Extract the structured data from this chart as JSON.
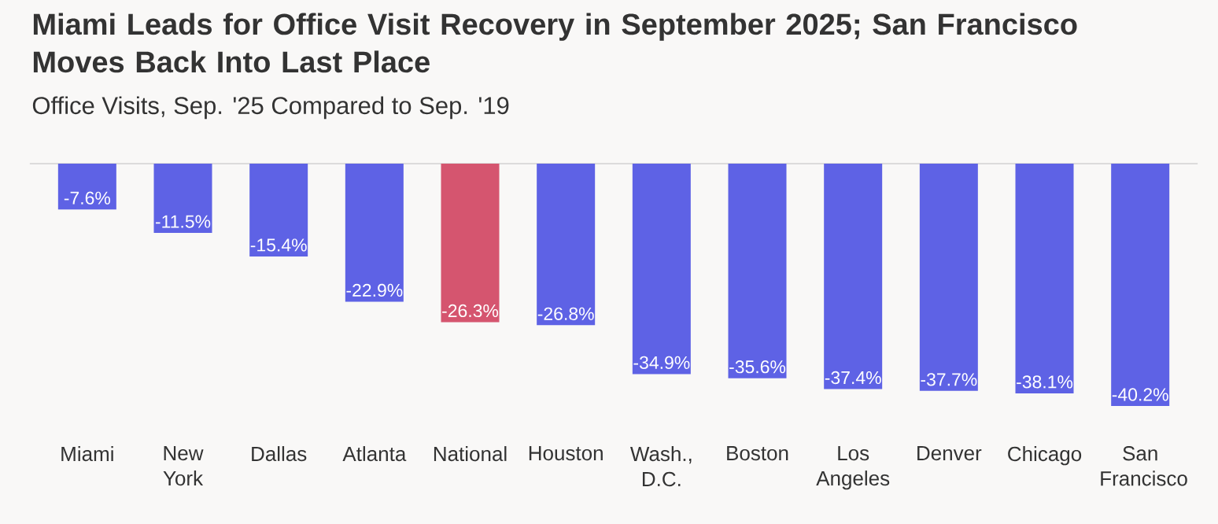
{
  "chart_data": {
    "type": "bar",
    "title": "Miami Leads for Office Visit Recovery in September 2025; San Francisco Moves Back Into Last Place",
    "subtitle": "Office Visits, Sep. '25 Compared to Sep. '19",
    "categories": [
      "Miami",
      "New York",
      "Dallas",
      "Atlanta",
      "National",
      "Houston",
      "Wash., D.C.",
      "Boston",
      "Los Angeles",
      "Denver",
      "Chicago",
      "San Francisco"
    ],
    "values": [
      -7.6,
      -11.5,
      -15.4,
      -22.9,
      -26.3,
      -26.8,
      -34.9,
      -35.6,
      -37.4,
      -37.7,
      -38.1,
      -40.2
    ],
    "value_labels": [
      "-7.6%",
      "-11.5%",
      "-15.4%",
      "-22.9%",
      "-26.3%",
      "-26.8%",
      "-34.9%",
      "-35.6%",
      "-37.4%",
      "-37.7%",
      "-38.1%",
      "-40.2%"
    ],
    "colors": [
      "#5e62e5",
      "#5e62e5",
      "#5e62e5",
      "#5e62e5",
      "#d5556f",
      "#5e62e5",
      "#5e62e5",
      "#5e62e5",
      "#5e62e5",
      "#5e62e5",
      "#5e62e5",
      "#5e62e5"
    ]
  }
}
